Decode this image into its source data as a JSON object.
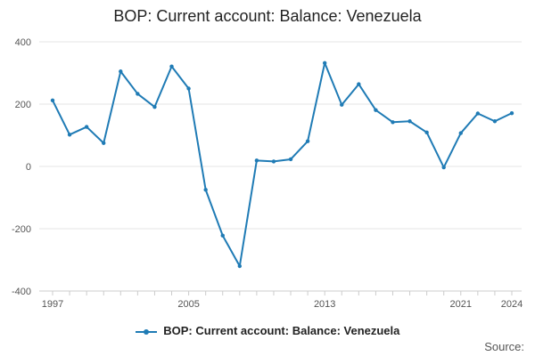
{
  "chart_data": {
    "type": "line",
    "title": "BOP: Current account: Balance: Venezuela",
    "xlabel": "",
    "ylabel": "",
    "x": [
      1997,
      1998,
      1999,
      2000,
      2001,
      2002,
      2003,
      2004,
      2005,
      2006,
      2007,
      2008,
      2009,
      2010,
      2011,
      2012,
      2013,
      2014,
      2015,
      2016,
      2017,
      2018,
      2019,
      2020,
      2021,
      2022,
      2023,
      2024
    ],
    "x_ticks": [
      "1997",
      "2005",
      "2013",
      "2021",
      "2024"
    ],
    "y_ticks": [
      "400",
      "200",
      "0",
      "-200",
      "-400"
    ],
    "ylim": [
      -400,
      400
    ],
    "grid": true,
    "legend_position": "bottom",
    "series": [
      {
        "name": "BOP: Current account: Balance: Venezuela",
        "color": "#1f7bb5",
        "values": [
          212,
          102,
          127,
          75,
          305,
          233,
          191,
          321,
          250,
          -75,
          -222,
          -320,
          19,
          16,
          23,
          81,
          332,
          198,
          264,
          181,
          142,
          145,
          109,
          -3,
          107,
          170,
          145,
          171
        ]
      }
    ],
    "source_label": "Source:"
  }
}
